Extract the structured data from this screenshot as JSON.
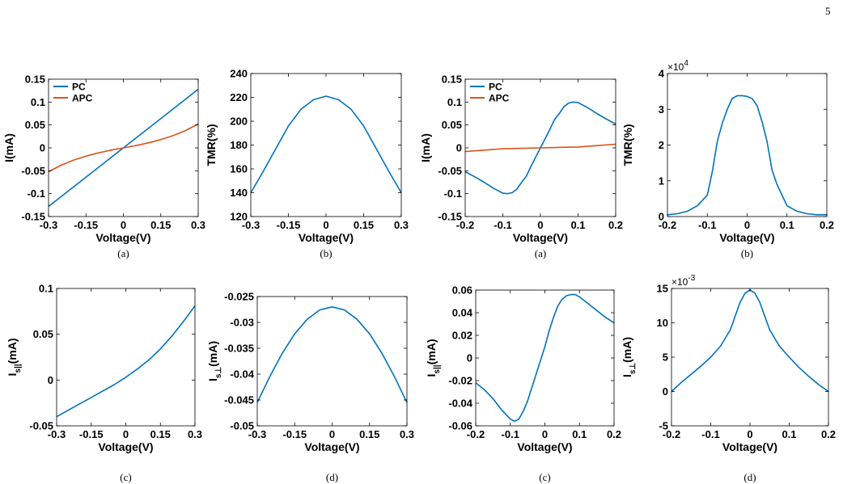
{
  "page_number": "5",
  "chart_data": [
    {
      "type": "line",
      "caption": "(a)",
      "xlabel": "Voltage(V)",
      "ylabel": "I(mA)",
      "xlim": [
        -0.3,
        0.3
      ],
      "ylim": [
        -0.15,
        0.15
      ],
      "xticks": [
        "-0.3",
        "-0.15",
        "0",
        "0.15",
        "0.3"
      ],
      "yticks": [
        "-0.15",
        "-0.1",
        "-0.05",
        "0",
        "0.05",
        "0.1",
        "0.15"
      ],
      "legend_position": "top-left",
      "series": [
        {
          "name": "PC",
          "color": "#0072BD",
          "x": [
            -0.3,
            -0.15,
            0,
            0.15,
            0.3
          ],
          "y": [
            -0.128,
            -0.064,
            0,
            0.064,
            0.128
          ]
        },
        {
          "name": "APC",
          "color": "#D95319",
          "x": [
            -0.3,
            -0.25,
            -0.2,
            -0.15,
            -0.1,
            -0.05,
            0,
            0.05,
            0.1,
            0.15,
            0.2,
            0.25,
            0.3
          ],
          "y": [
            -0.052,
            -0.038,
            -0.027,
            -0.018,
            -0.011,
            -0.005,
            0,
            0.005,
            0.011,
            0.018,
            0.027,
            0.038,
            0.052
          ]
        }
      ]
    },
    {
      "type": "line",
      "caption": "(b)",
      "xlabel": "Voltage(V)",
      "ylabel": "TMR(%)",
      "xlim": [
        -0.3,
        0.3
      ],
      "ylim": [
        120,
        240
      ],
      "xticks": [
        "-0.3",
        "-0.15",
        "0",
        "0.15",
        "0.3"
      ],
      "yticks": [
        "120",
        "140",
        "160",
        "180",
        "200",
        "220",
        "240"
      ],
      "series": [
        {
          "color": "#0072BD",
          "x": [
            -0.3,
            -0.25,
            -0.2,
            -0.15,
            -0.1,
            -0.05,
            0,
            0.05,
            0.1,
            0.15,
            0.2,
            0.25,
            0.3
          ],
          "y": [
            140,
            158,
            177,
            196,
            210,
            218,
            221,
            218,
            210,
            196,
            177,
            158,
            140
          ]
        }
      ]
    },
    {
      "type": "line",
      "caption": "(a)",
      "xlabel": "Voltage(V)",
      "ylabel": "I(mA)",
      "xlim": [
        -0.2,
        0.2
      ],
      "ylim": [
        -0.15,
        0.15
      ],
      "xticks": [
        "-0.2",
        "-0.1",
        "0",
        "0.1",
        "0.2"
      ],
      "yticks": [
        "-0.15",
        "-0.1",
        "-0.05",
        "0",
        "0.05",
        "0.1",
        "0.15"
      ],
      "legend_position": "top-left",
      "series": [
        {
          "name": "PC",
          "color": "#0072BD",
          "x": [
            -0.2,
            -0.175,
            -0.15,
            -0.125,
            -0.1,
            -0.0875,
            -0.075,
            -0.0625,
            -0.05,
            -0.0375,
            -0.025,
            -0.0125,
            0,
            0.0125,
            0.025,
            0.0375,
            0.05,
            0.0625,
            0.075,
            0.0875,
            0.1,
            0.125,
            0.15,
            0.175,
            0.2
          ],
          "y": [
            -0.052,
            -0.063,
            -0.075,
            -0.088,
            -0.099,
            -0.1,
            -0.098,
            -0.09,
            -0.075,
            -0.062,
            -0.04,
            -0.02,
            0,
            0.02,
            0.04,
            0.062,
            0.075,
            0.09,
            0.098,
            0.1,
            0.099,
            0.088,
            0.075,
            0.063,
            0.052
          ]
        },
        {
          "name": "APC",
          "color": "#D95319",
          "x": [
            -0.2,
            -0.15,
            -0.1,
            -0.05,
            0,
            0.05,
            0.1,
            0.15,
            0.2
          ],
          "y": [
            -0.008,
            -0.005,
            -0.002,
            -0.001,
            0,
            0.001,
            0.002,
            0.005,
            0.008
          ]
        }
      ]
    },
    {
      "type": "line",
      "caption": "(b)",
      "xlabel": "Voltage(V)",
      "ylabel": "TMR(%)",
      "y_multiplier": "×10",
      "y_multiplier_exp": "4",
      "xlim": [
        -0.2,
        0.2
      ],
      "ylim": [
        0,
        4
      ],
      "xticks": [
        "-0.2",
        "-0.1",
        "0",
        "0.1",
        "0.2"
      ],
      "yticks": [
        "0",
        "1",
        "2",
        "3",
        "4"
      ],
      "series": [
        {
          "color": "#0072BD",
          "x": [
            -0.2,
            -0.175,
            -0.15,
            -0.125,
            -0.1,
            -0.0875,
            -0.075,
            -0.0625,
            -0.05,
            -0.0375,
            -0.025,
            -0.0125,
            0,
            0.0125,
            0.025,
            0.0375,
            0.05,
            0.0625,
            0.075,
            0.0875,
            0.1,
            0.125,
            0.15,
            0.175,
            0.2
          ],
          "y": [
            0.05,
            0.08,
            0.15,
            0.3,
            0.6,
            1.25,
            2.1,
            2.6,
            3.0,
            3.3,
            3.38,
            3.38,
            3.36,
            3.3,
            3.1,
            2.65,
            2.1,
            1.3,
            0.9,
            0.6,
            0.3,
            0.15,
            0.08,
            0.05,
            0.05
          ]
        }
      ]
    },
    {
      "type": "line",
      "caption": "(c)",
      "xlabel": "Voltage(V)",
      "ylabel": "I",
      "ylabel_sub": "s||",
      "ylabel_suffix": "(mA)",
      "xlim": [
        -0.3,
        0.3
      ],
      "ylim": [
        -0.05,
        0.1
      ],
      "xticks": [
        "-0.3",
        "-0.15",
        "0",
        "0.15",
        "0.3"
      ],
      "yticks": [
        "-0.05",
        "0",
        "0.05",
        "0.1"
      ],
      "series": [
        {
          "color": "#0072BD",
          "x": [
            -0.3,
            -0.25,
            -0.2,
            -0.15,
            -0.1,
            -0.05,
            0,
            0.05,
            0.1,
            0.15,
            0.2,
            0.25,
            0.3
          ],
          "y": [
            -0.04,
            -0.033,
            -0.026,
            -0.019,
            -0.012,
            -0.005,
            0.003,
            0.012,
            0.022,
            0.034,
            0.048,
            0.064,
            0.081
          ]
        }
      ]
    },
    {
      "type": "line",
      "caption": "(d)",
      "xlabel": "Voltage(V)",
      "ylabel": "I",
      "ylabel_sub": "s⊥",
      "ylabel_suffix": "(mA)",
      "xlim": [
        -0.3,
        0.3
      ],
      "ylim": [
        -0.05,
        -0.025
      ],
      "xticks": [
        "-0.3",
        "-0.15",
        "0",
        "0.15",
        "0.3"
      ],
      "yticks": [
        "-0.05",
        "-0.045",
        "-0.04",
        "-0.035",
        "-0.03",
        "-0.025"
      ],
      "series": [
        {
          "color": "#0072BD",
          "x": [
            -0.3,
            -0.25,
            -0.2,
            -0.15,
            -0.1,
            -0.05,
            0,
            0.05,
            0.1,
            0.15,
            0.2,
            0.25,
            0.3
          ],
          "y": [
            -0.0455,
            -0.0405,
            -0.036,
            -0.0322,
            -0.0294,
            -0.0276,
            -0.027,
            -0.0276,
            -0.0294,
            -0.0322,
            -0.036,
            -0.0405,
            -0.0455
          ]
        }
      ]
    },
    {
      "type": "line",
      "caption": "(c)",
      "xlabel": "Voltage(V)",
      "ylabel": "I",
      "ylabel_sub": "s||",
      "ylabel_suffix": "(mA)",
      "xlim": [
        -0.2,
        0.2
      ],
      "ylim": [
        -0.06,
        0.06
      ],
      "xticks": [
        "-0.2",
        "-0.1",
        "0",
        "0.1",
        "0.2"
      ],
      "yticks": [
        "-0.06",
        "-0.04",
        "-0.02",
        "0",
        "0.02",
        "0.04",
        "0.06"
      ],
      "series": [
        {
          "color": "#0072BD",
          "x": [
            -0.2,
            -0.175,
            -0.15,
            -0.125,
            -0.1,
            -0.0875,
            -0.075,
            -0.0625,
            -0.05,
            -0.0375,
            -0.025,
            -0.0125,
            0,
            0.0125,
            0.025,
            0.0375,
            0.05,
            0.0625,
            0.075,
            0.0875,
            0.1,
            0.125,
            0.15,
            0.175,
            0.2
          ],
          "y": [
            -0.022,
            -0.028,
            -0.036,
            -0.046,
            -0.054,
            -0.056,
            -0.054,
            -0.047,
            -0.038,
            -0.026,
            -0.014,
            -0.002,
            0.01,
            0.024,
            0.036,
            0.046,
            0.052,
            0.055,
            0.056,
            0.056,
            0.054,
            0.048,
            0.042,
            0.036,
            0.031
          ]
        }
      ]
    },
    {
      "type": "line",
      "caption": "(d)",
      "xlabel": "Voltage(V)",
      "ylabel": "I",
      "ylabel_sub": "s⊥",
      "ylabel_suffix": "(mA)",
      "y_multiplier": "×10",
      "y_multiplier_exp": "-3",
      "xlim": [
        -0.2,
        0.2
      ],
      "ylim": [
        -5,
        15
      ],
      "xticks": [
        "-0.2",
        "-0.1",
        "0",
        "0.1",
        "0.2"
      ],
      "yticks": [
        "-5",
        "0",
        "5",
        "10",
        "15"
      ],
      "series": [
        {
          "color": "#0072BD",
          "x": [
            -0.2,
            -0.175,
            -0.15,
            -0.125,
            -0.1,
            -0.075,
            -0.05,
            -0.0375,
            -0.025,
            -0.0125,
            0,
            0.0125,
            0.025,
            0.0375,
            0.05,
            0.075,
            0.1,
            0.125,
            0.15,
            0.175,
            0.2
          ],
          "y": [
            0,
            1.3,
            2.5,
            3.7,
            5.0,
            6.6,
            9.0,
            11.0,
            13.0,
            14.3,
            14.8,
            14.3,
            13.0,
            11.0,
            9.0,
            6.6,
            5.0,
            3.5,
            2.2,
            1.0,
            0
          ]
        }
      ]
    }
  ]
}
